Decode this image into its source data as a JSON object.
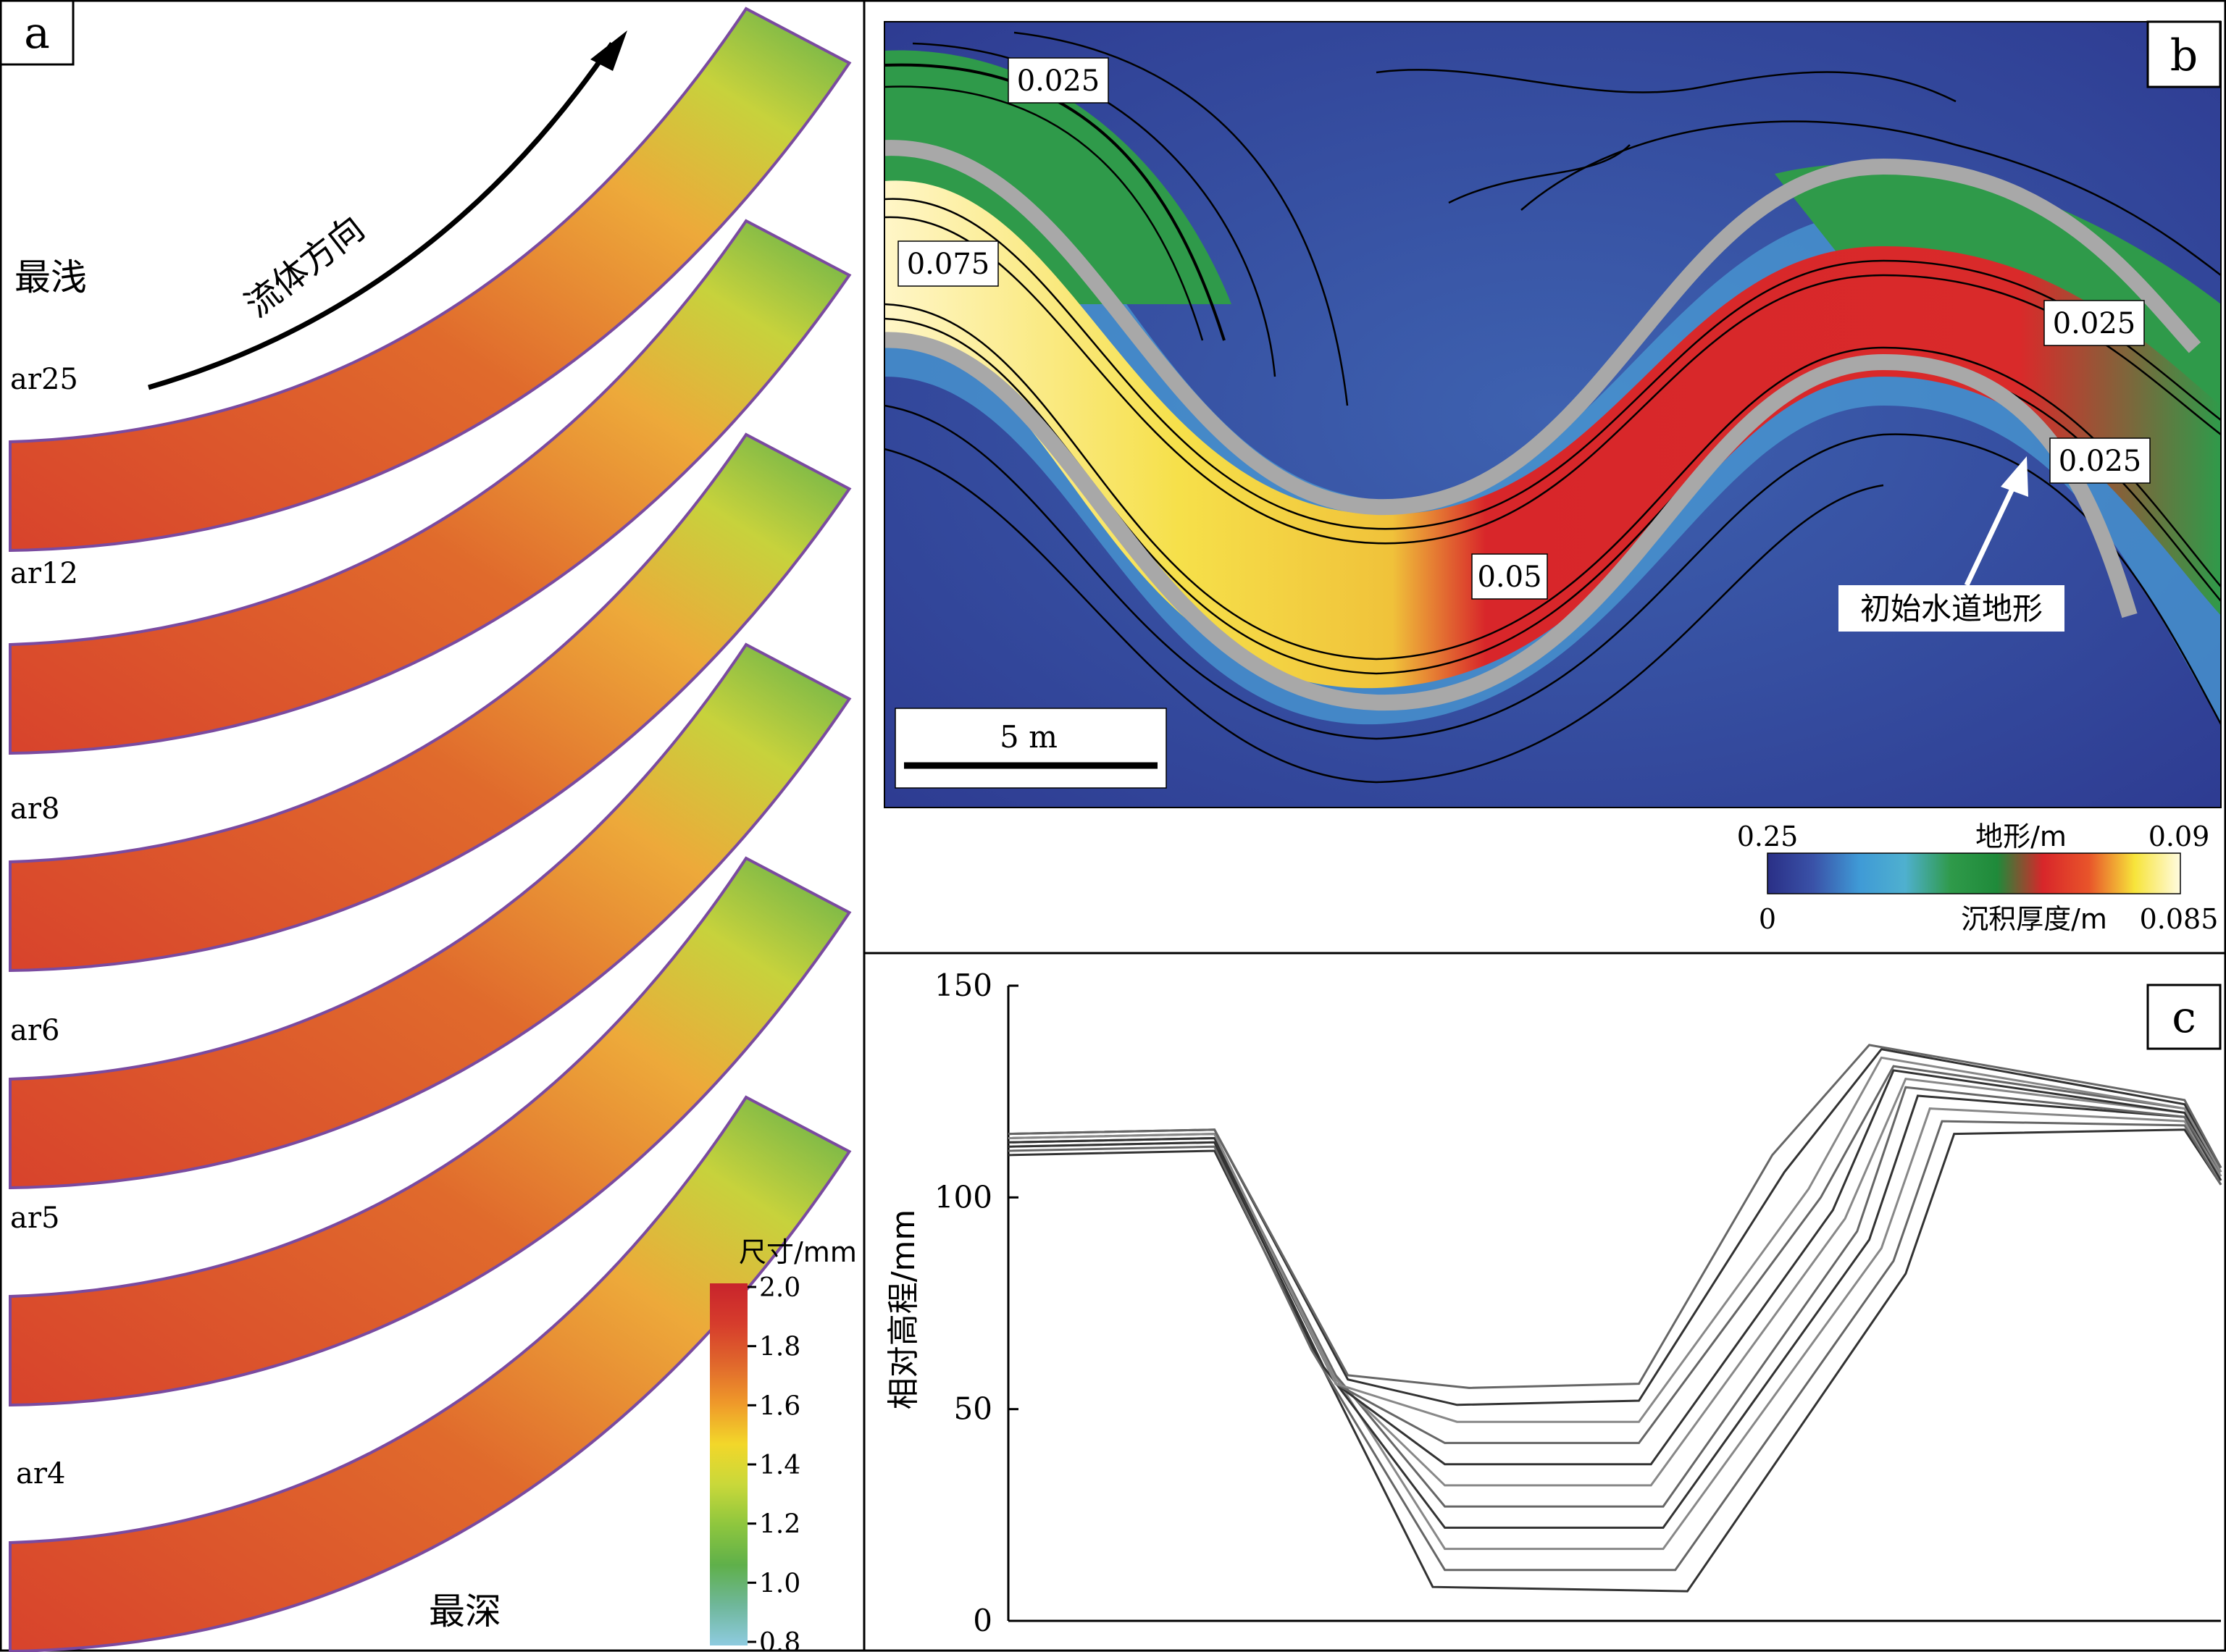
{
  "panel_a": {
    "label": "a",
    "flow_direction": "流体方向",
    "shallowest": "最浅",
    "deepest": "最深",
    "runs": [
      "ar25",
      "ar12",
      "ar8",
      "ar6",
      "ar5",
      "ar4"
    ],
    "colorbar": {
      "title": "尺寸/mm",
      "ticks": [
        "2.0",
        "1.8",
        "1.6",
        "1.4",
        "1.2",
        "1.0",
        "0.8"
      ],
      "colors": [
        "#c8242c",
        "#d63c2c",
        "#e0672c",
        "#ef9a2a",
        "#f2d72a",
        "#c9d83a",
        "#8ec63e",
        "#5fb04a",
        "#6fb79a",
        "#8ecbe0"
      ]
    }
  },
  "panel_b": {
    "label": "b",
    "contour_labels": [
      "0.025",
      "0.075",
      "0.025",
      "0.025",
      "0.05"
    ],
    "annotation": "初始水道地形",
    "scale_bar": "5 m",
    "colorbar": {
      "top_left": "0.25",
      "top_title": "地形/m",
      "top_right": "0.09",
      "bottom_left": "0",
      "bottom_title": "沉积厚度/m",
      "bottom_right": "0.085",
      "colors": [
        "#2a2f86",
        "#3a52a8",
        "#3f9ad6",
        "#4fb0cf",
        "#2f9a4a",
        "#1f8a3a",
        "#d8262a",
        "#e8542a",
        "#f7e43a",
        "#fffbe0"
      ]
    }
  },
  "panel_c": {
    "label": "c",
    "chart_data": {
      "type": "line",
      "title": "",
      "xlabel": "",
      "ylabel": "相对高程/mm",
      "ylim": [
        0,
        150
      ],
      "yticks": [
        0,
        50,
        100,
        150
      ],
      "xlim": [
        0,
        100
      ],
      "series": [
        {
          "values": [
            [
              0,
              110
            ],
            [
              17,
              111
            ],
            [
              25,
              65
            ],
            [
              35,
              8
            ],
            [
              56,
              7
            ],
            [
              74,
              82
            ],
            [
              78,
              115
            ],
            [
              97,
              116
            ],
            [
              100,
              103
            ]
          ]
        },
        {
          "values": [
            [
              0,
              111
            ],
            [
              17,
              112
            ],
            [
              25,
              64
            ],
            [
              36,
              12
            ],
            [
              55,
              12
            ],
            [
              73,
              85
            ],
            [
              77,
              118
            ],
            [
              97,
              117
            ],
            [
              100,
              103
            ]
          ]
        },
        {
          "values": [
            [
              0,
              112
            ],
            [
              17,
              113
            ],
            [
              26,
              62
            ],
            [
              36,
              17
            ],
            [
              54,
              17
            ],
            [
              72,
              88
            ],
            [
              76,
              121
            ],
            [
              97,
              118
            ],
            [
              100,
              104
            ]
          ]
        },
        {
          "values": [
            [
              0,
              112
            ],
            [
              17,
              113
            ],
            [
              26,
              60
            ],
            [
              36,
              22
            ],
            [
              54,
              22
            ],
            [
              71,
              90
            ],
            [
              75,
              124
            ],
            [
              97,
              119
            ],
            [
              100,
              104
            ]
          ]
        },
        {
          "values": [
            [
              0,
              113
            ],
            [
              17,
              114
            ],
            [
              27,
              58
            ],
            [
              36,
              27
            ],
            [
              54,
              27
            ],
            [
              70,
              92
            ],
            [
              74,
              126
            ],
            [
              97,
              119
            ],
            [
              100,
              105
            ]
          ]
        },
        {
          "values": [
            [
              0,
              113
            ],
            [
              17,
              114
            ],
            [
              27,
              57
            ],
            [
              36,
              32
            ],
            [
              53,
              32
            ],
            [
              69,
              95
            ],
            [
              74,
              128
            ],
            [
              97,
              120
            ],
            [
              100,
              105
            ]
          ]
        },
        {
          "values": [
            [
              0,
              113
            ],
            [
              17,
              114
            ],
            [
              27,
              56
            ],
            [
              36,
              37
            ],
            [
              53,
              37
            ],
            [
              68,
              97
            ],
            [
              73,
              130
            ],
            [
              97,
              120
            ],
            [
              100,
              106
            ]
          ]
        },
        {
          "values": [
            [
              0,
              114
            ],
            [
              17,
              115
            ],
            [
              27,
              56
            ],
            [
              36,
              42
            ],
            [
              52,
              42
            ],
            [
              67,
              100
            ],
            [
              73,
              131
            ],
            [
              97,
              121
            ],
            [
              100,
              106
            ]
          ]
        },
        {
          "values": [
            [
              0,
              114
            ],
            [
              17,
              115
            ],
            [
              27,
              56
            ],
            [
              37,
              47
            ],
            [
              52,
              47
            ],
            [
              66,
              102
            ],
            [
              72,
              133
            ],
            [
              97,
              121
            ],
            [
              100,
              106
            ]
          ]
        },
        {
          "values": [
            [
              0,
              115
            ],
            [
              17,
              116
            ],
            [
              28,
              57
            ],
            [
              37,
              51
            ],
            [
              52,
              52
            ],
            [
              64,
              106
            ],
            [
              72,
              135
            ],
            [
              97,
              122
            ],
            [
              100,
              107
            ]
          ]
        },
        {
          "values": [
            [
              0,
              115
            ],
            [
              17,
              116
            ],
            [
              28,
              58
            ],
            [
              38,
              55
            ],
            [
              52,
              56
            ],
            [
              63,
              110
            ],
            [
              71,
              136
            ],
            [
              97,
              123
            ],
            [
              100,
              107
            ]
          ]
        }
      ]
    }
  }
}
